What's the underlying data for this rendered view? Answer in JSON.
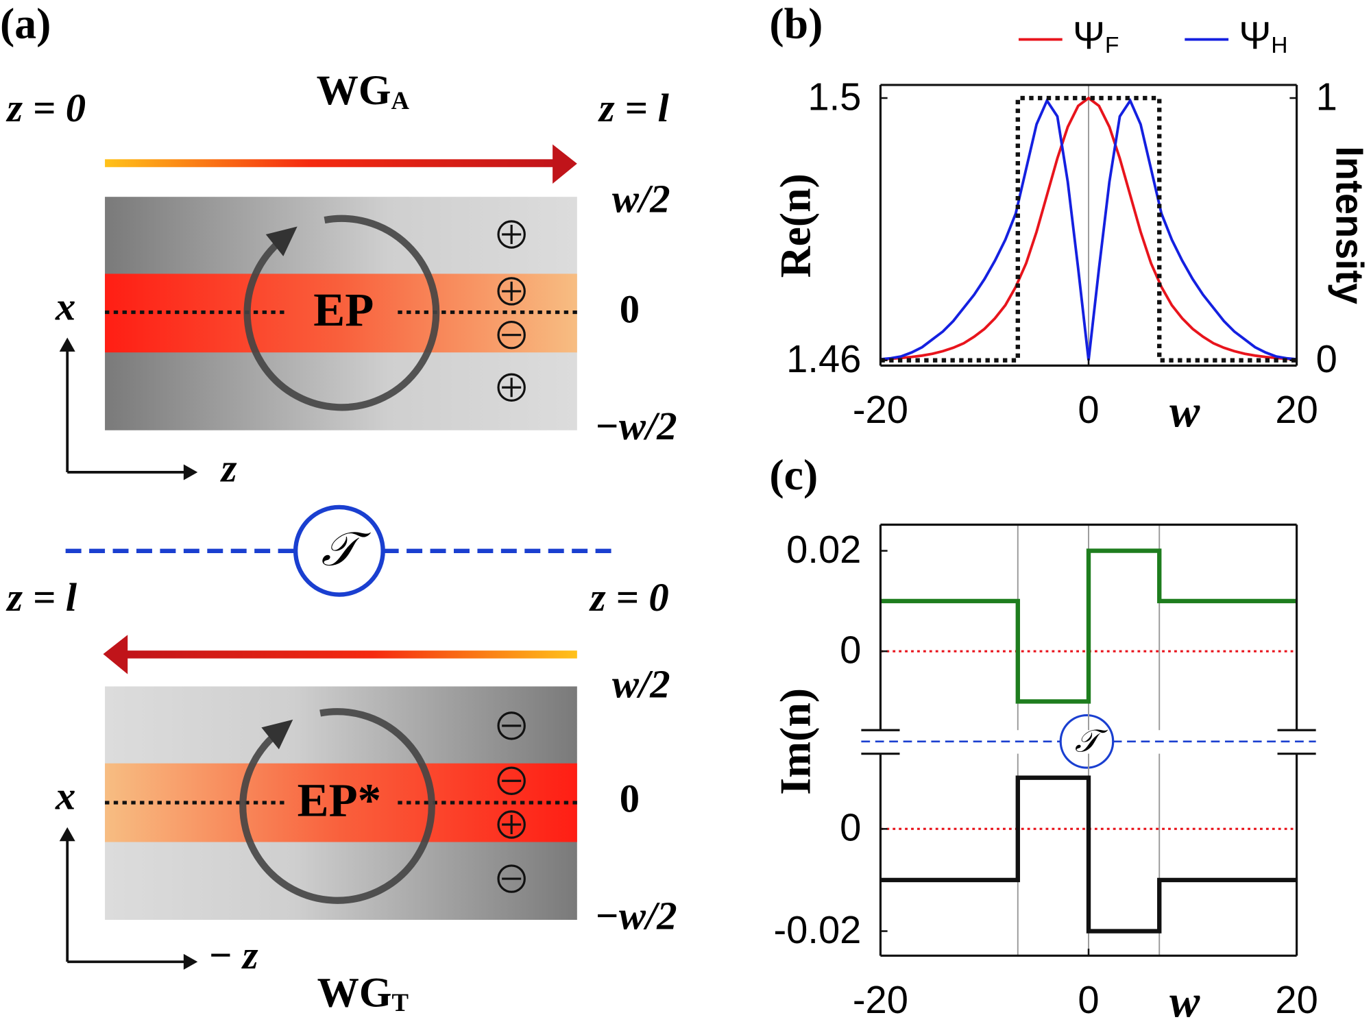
{
  "diagram": {
    "label": "(a)",
    "symbol": "𝒯",
    "top": {
      "left": "z = 0",
      "name": "WGA",
      "right": "z = l",
      "upper": "w/2",
      "center": "0",
      "lower": "−w/2",
      "ep": "EP",
      "x_axis": "x",
      "z_axis": "z"
    },
    "bottom": {
      "left": "z = l",
      "right": "z = 0",
      "name": "WGT",
      "upper": "w/2",
      "center": "0",
      "lower": "−w/2",
      "ep": "EP*",
      "x_axis": "x",
      "z_axis": "− z"
    }
  },
  "chart_data": [
    {
      "type": "line",
      "title": "(b)",
      "xlabel": "w",
      "ylabel": "Re(n)",
      "y2label": "Intensity",
      "xlim": [
        -20,
        20
      ],
      "xticks": [
        -20,
        0,
        20
      ],
      "ylim": [
        1.4592,
        1.502
      ],
      "yticks": [
        1.46,
        1.5
      ],
      "y2lim": [
        -0.02,
        1.05
      ],
      "y2ticks": [
        0,
        1
      ],
      "vlines": [
        0
      ],
      "legend": "top-right",
      "x": [
        -20,
        -19,
        -18,
        -17,
        -16,
        -15,
        -14,
        -13,
        -12,
        -11,
        -10,
        -9,
        -8,
        -7,
        -6,
        -5,
        -4,
        -3,
        -2,
        -1,
        0,
        1,
        2,
        3,
        4,
        5,
        6,
        7,
        8,
        9,
        10,
        11,
        12,
        13,
        14,
        15,
        16,
        17,
        18,
        19,
        20
      ],
      "series": [
        {
          "name": "ΨF",
          "color": "#e8141c",
          "axis": "y2",
          "values": [
            0.004,
            0.006,
            0.009,
            0.013,
            0.018,
            0.025,
            0.035,
            0.048,
            0.065,
            0.09,
            0.12,
            0.16,
            0.21,
            0.28,
            0.37,
            0.49,
            0.63,
            0.77,
            0.89,
            0.97,
            1,
            0.97,
            0.89,
            0.77,
            0.63,
            0.49,
            0.37,
            0.28,
            0.21,
            0.16,
            0.12,
            0.09,
            0.065,
            0.048,
            0.035,
            0.025,
            0.018,
            0.013,
            0.009,
            0.006,
            0.004
          ]
        },
        {
          "name": "ΨH",
          "color": "#1420e0",
          "axis": "y2",
          "values": [
            0.004,
            0.008,
            0.015,
            0.03,
            0.05,
            0.08,
            0.11,
            0.15,
            0.2,
            0.25,
            0.31,
            0.38,
            0.46,
            0.56,
            0.73,
            0.9,
            0.99,
            0.93,
            0.68,
            0.35,
            0,
            0.35,
            0.68,
            0.93,
            0.99,
            0.9,
            0.73,
            0.56,
            0.46,
            0.38,
            0.31,
            0.25,
            0.2,
            0.15,
            0.11,
            0.08,
            0.05,
            0.03,
            0.015,
            0.008,
            0.004
          ]
        },
        {
          "color": "#111111",
          "style": "dotted",
          "x": [
            -20,
            -6.8,
            -6.8,
            6.8,
            6.8,
            20
          ],
          "values": [
            1.46,
            1.46,
            1.5,
            1.5,
            1.46,
            1.46
          ]
        }
      ]
    },
    {
      "type": "line",
      "title": "(c)",
      "ylabel": "Im(n)",
      "xlim": [
        -20,
        20
      ],
      "ylim": [
        -0.0157,
        0.0252
      ],
      "yticks": [
        0,
        0.02
      ],
      "vlines": [
        -6.8,
        0,
        6.8
      ],
      "hline": 0,
      "hline_color": "#e8141c",
      "x": [
        -20,
        -6.8,
        -6.8,
        0,
        0,
        6.8,
        6.8,
        20
      ],
      "series": [
        {
          "color": "#1e7d1e",
          "values": [
            0.01,
            0.01,
            -0.01,
            -0.01,
            0.02,
            0.02,
            0.01,
            0.01
          ]
        }
      ]
    },
    {
      "type": "line",
      "xlabel": "w",
      "xlim": [
        -20,
        20
      ],
      "xticks": [
        -20,
        0,
        20
      ],
      "ylim": [
        -0.0248,
        0.0147
      ],
      "yticks": [
        -0.02,
        0
      ],
      "vlines": [
        -6.8,
        0,
        6.8
      ],
      "hline": 0,
      "hline_color": "#e8141c",
      "x": [
        -20,
        -6.8,
        -6.8,
        0,
        0,
        6.8,
        6.8,
        20
      ],
      "series": [
        {
          "color": "#111111",
          "values": [
            -0.01,
            -0.01,
            0.01,
            0.01,
            -0.02,
            -0.02,
            -0.01,
            -0.01
          ]
        }
      ]
    }
  ]
}
